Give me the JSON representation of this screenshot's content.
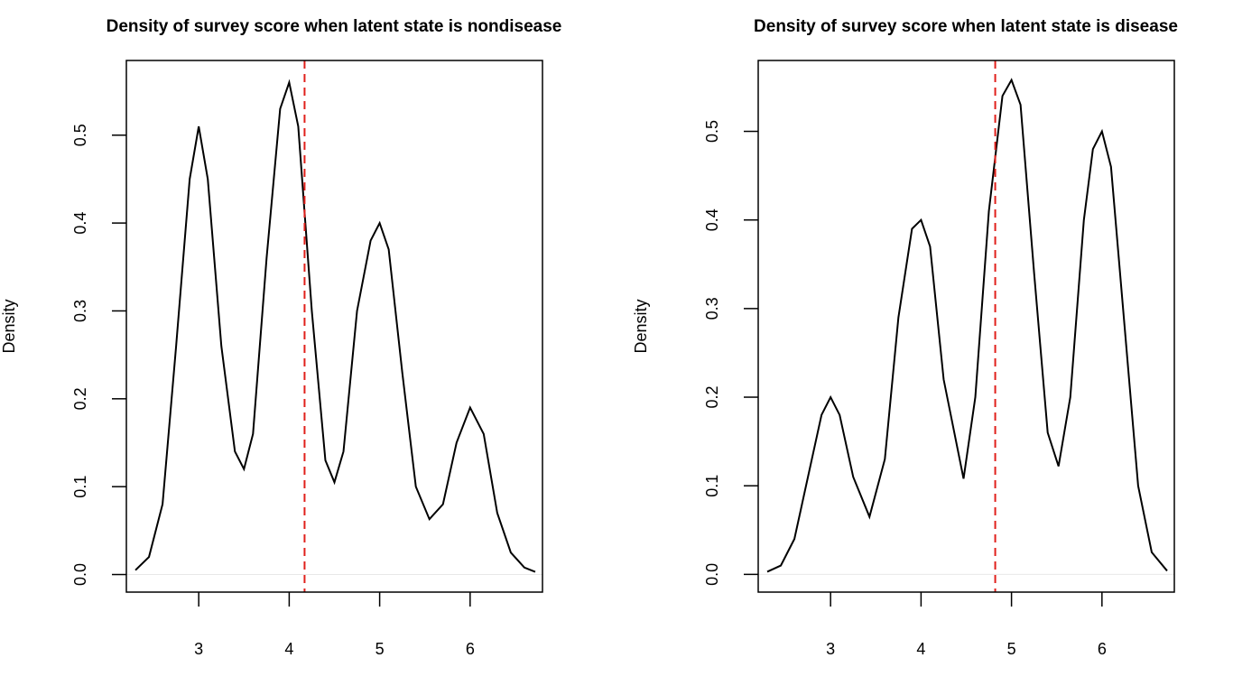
{
  "chart_data": [
    {
      "type": "line",
      "title": "Density of survey score when latent state is nondisease",
      "xlabel": "",
      "ylabel": "Density",
      "xlim": [
        2.2,
        6.8
      ],
      "ylim": [
        -0.02,
        0.585
      ],
      "xticks": [
        3,
        4,
        5,
        6
      ],
      "yticks": [
        0.0,
        0.1,
        0.2,
        0.3,
        0.4,
        0.5
      ],
      "ytick_labels": [
        "0.0",
        "0.1",
        "0.2",
        "0.3",
        "0.4",
        "0.5"
      ],
      "series": [
        {
          "values_x": [
            2.3,
            2.45,
            2.6,
            2.75,
            2.9,
            3.0,
            3.1,
            3.25,
            3.4,
            3.5,
            3.6,
            3.75,
            3.9,
            4.0,
            4.1,
            4.25,
            4.4,
            4.5,
            4.6,
            4.75,
            4.9,
            5.0,
            5.1,
            5.25,
            5.4,
            5.55,
            5.7,
            5.85,
            6.0,
            6.15,
            6.3,
            6.45,
            6.6,
            6.72
          ],
          "values_y": [
            0.005,
            0.02,
            0.08,
            0.26,
            0.45,
            0.51,
            0.45,
            0.26,
            0.14,
            0.12,
            0.16,
            0.36,
            0.53,
            0.56,
            0.51,
            0.3,
            0.13,
            0.105,
            0.14,
            0.3,
            0.38,
            0.4,
            0.37,
            0.23,
            0.1,
            0.063,
            0.08,
            0.15,
            0.19,
            0.16,
            0.07,
            0.025,
            0.008,
            0.003
          ]
        }
      ],
      "vline": {
        "x": 4.17,
        "color": "#e0201b"
      },
      "hline": {
        "y": 0.0,
        "color": "#e8e8e8"
      }
    },
    {
      "type": "line",
      "title": "Density of survey score when latent state is disease",
      "xlabel": "",
      "ylabel": "Density",
      "xlim": [
        2.2,
        6.8
      ],
      "ylim": [
        -0.02,
        0.58
      ],
      "xticks": [
        3,
        4,
        5,
        6
      ],
      "yticks": [
        0.0,
        0.1,
        0.2,
        0.3,
        0.4,
        0.5
      ],
      "ytick_labels": [
        "0.0",
        "0.1",
        "0.2",
        "0.3",
        "0.4",
        "0.5"
      ],
      "series": [
        {
          "values_x": [
            2.3,
            2.45,
            2.6,
            2.75,
            2.9,
            3.0,
            3.1,
            3.25,
            3.43,
            3.6,
            3.75,
            3.9,
            4.0,
            4.1,
            4.25,
            4.47,
            4.6,
            4.75,
            4.9,
            5.0,
            5.1,
            5.25,
            5.4,
            5.52,
            5.65,
            5.8,
            5.9,
            6.0,
            6.1,
            6.25,
            6.4,
            6.55,
            6.72
          ],
          "values_y": [
            0.003,
            0.01,
            0.04,
            0.11,
            0.18,
            0.2,
            0.18,
            0.11,
            0.065,
            0.13,
            0.29,
            0.39,
            0.4,
            0.37,
            0.22,
            0.108,
            0.2,
            0.41,
            0.54,
            0.558,
            0.53,
            0.34,
            0.16,
            0.122,
            0.2,
            0.4,
            0.48,
            0.5,
            0.46,
            0.28,
            0.1,
            0.025,
            0.004
          ]
        }
      ],
      "vline": {
        "x": 4.82,
        "color": "#e0201b"
      },
      "hline": {
        "y": 0.0,
        "color": "#e8e8e8"
      }
    }
  ]
}
